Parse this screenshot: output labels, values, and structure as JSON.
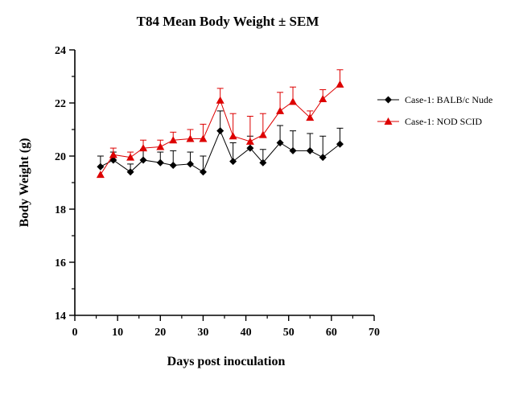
{
  "chart_data": {
    "type": "line",
    "title": "T84 Mean Body Weight ± SEM",
    "xlabel": "Days post inoculation",
    "ylabel": "Body Weight (g)",
    "xlim": [
      0,
      70
    ],
    "ylim": [
      14,
      24
    ],
    "x_ticks": [
      0,
      10,
      20,
      30,
      40,
      50,
      60,
      70
    ],
    "y_ticks": [
      14,
      16,
      18,
      20,
      22,
      24
    ],
    "x_tick_labels": [
      "0",
      "10",
      "20",
      "30",
      "40",
      "50",
      "60",
      "70"
    ],
    "y_tick_labels": [
      "14",
      "16",
      "18",
      "20",
      "22",
      "24"
    ],
    "grid": false,
    "legend_position": "right",
    "error_bars": "upper SEM",
    "series": [
      {
        "name": "Case-1: BALB/c Nude",
        "color": "#000000",
        "marker": "diamond",
        "x": [
          6,
          9,
          13,
          16,
          20,
          23,
          27,
          30,
          34,
          37,
          41,
          44,
          48,
          51,
          55,
          58,
          62
        ],
        "y": [
          19.6,
          19.85,
          19.4,
          19.85,
          19.75,
          19.65,
          19.7,
          19.4,
          20.95,
          19.8,
          20.3,
          19.75,
          20.5,
          20.2,
          20.2,
          19.95,
          20.45
        ],
        "err": [
          0.4,
          0.3,
          0.3,
          0.4,
          0.4,
          0.55,
          0.45,
          0.6,
          0.75,
          0.7,
          0.45,
          0.5,
          0.65,
          0.75,
          0.65,
          0.8,
          0.6
        ]
      },
      {
        "name": "Case-1: NOD SCID",
        "color": "#dd0000",
        "marker": "triangle",
        "x": [
          6,
          9,
          13,
          16,
          20,
          23,
          27,
          30,
          34,
          37,
          41,
          44,
          48,
          51,
          55,
          58,
          62
        ],
        "y": [
          19.3,
          20.05,
          19.95,
          20.3,
          20.35,
          20.6,
          20.65,
          20.65,
          22.1,
          20.75,
          20.55,
          20.8,
          21.7,
          22.05,
          21.45,
          22.15,
          22.7
        ],
        "err": [
          0.0,
          0.25,
          0.2,
          0.3,
          0.25,
          0.3,
          0.35,
          0.55,
          0.45,
          0.85,
          0.95,
          0.8,
          0.7,
          0.55,
          0.25,
          0.35,
          0.55
        ]
      }
    ]
  }
}
